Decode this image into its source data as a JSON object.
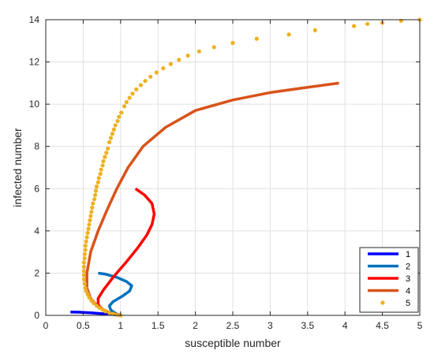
{
  "chart_data": {
    "type": "line",
    "title": "",
    "xlabel": "susceptible number",
    "ylabel": "infected number",
    "xlim": [
      0,
      5
    ],
    "ylim": [
      0,
      14
    ],
    "xticks": [
      0,
      0.5,
      1,
      1.5,
      2,
      2.5,
      3,
      3.5,
      4,
      4.5,
      5
    ],
    "yticks": [
      0,
      2,
      4,
      6,
      8,
      10,
      12,
      14
    ],
    "xtick_labels": [
      "0",
      "0.5",
      "1",
      "1.5",
      "2",
      "2.5",
      "3",
      "3.5",
      "4",
      "4.5",
      "5"
    ],
    "ytick_labels": [
      "0",
      "2",
      "4",
      "6",
      "8",
      "10",
      "12",
      "14"
    ],
    "grid": true,
    "legend_position": "bottom-right",
    "series": [
      {
        "name": "1",
        "color": "#0000ff",
        "style": "line",
        "points": [
          [
            0.33,
            0.16
          ],
          [
            0.45,
            0.15
          ],
          [
            0.6,
            0.12
          ],
          [
            0.72,
            0.09
          ],
          [
            0.82,
            0.06
          ],
          [
            0.9,
            0.04
          ],
          [
            0.95,
            0.02
          ],
          [
            1.0,
            0.0
          ]
        ]
      },
      {
        "name": "2",
        "color": "#0072bd",
        "style": "line",
        "points": [
          [
            0.7,
            2.0
          ],
          [
            0.8,
            1.95
          ],
          [
            0.95,
            1.8
          ],
          [
            1.08,
            1.6
          ],
          [
            1.15,
            1.4
          ],
          [
            1.12,
            1.15
          ],
          [
            1.02,
            0.9
          ],
          [
            0.9,
            0.65
          ],
          [
            0.85,
            0.45
          ],
          [
            0.87,
            0.25
          ],
          [
            0.93,
            0.1
          ],
          [
            1.0,
            0.0
          ]
        ]
      },
      {
        "name": "3",
        "color": "#ff0000",
        "style": "line",
        "points": [
          [
            1.2,
            6.0
          ],
          [
            1.32,
            5.7
          ],
          [
            1.42,
            5.3
          ],
          [
            1.45,
            4.8
          ],
          [
            1.42,
            4.3
          ],
          [
            1.35,
            3.8
          ],
          [
            1.23,
            3.2
          ],
          [
            1.07,
            2.5
          ],
          [
            0.9,
            1.8
          ],
          [
            0.77,
            1.2
          ],
          [
            0.7,
            0.8
          ],
          [
            0.7,
            0.5
          ],
          [
            0.77,
            0.25
          ],
          [
            0.88,
            0.08
          ],
          [
            1.0,
            0.0
          ]
        ]
      },
      {
        "name": "4",
        "color": "#d95319",
        "style": "line",
        "points": [
          [
            3.92,
            11.0
          ],
          [
            3.5,
            10.8
          ],
          [
            3.0,
            10.55
          ],
          [
            2.5,
            10.2
          ],
          [
            2.0,
            9.7
          ],
          [
            1.6,
            8.9
          ],
          [
            1.3,
            8.0
          ],
          [
            1.1,
            7.0
          ],
          [
            0.95,
            6.0
          ],
          [
            0.82,
            5.0
          ],
          [
            0.7,
            4.0
          ],
          [
            0.6,
            3.0
          ],
          [
            0.55,
            2.0
          ],
          [
            0.55,
            1.3
          ],
          [
            0.6,
            0.8
          ],
          [
            0.7,
            0.4
          ],
          [
            0.85,
            0.13
          ],
          [
            1.0,
            0.0
          ]
        ]
      },
      {
        "name": "5",
        "color": "#edb120",
        "style": "dots",
        "points": [
          [
            5.0,
            14.0
          ],
          [
            4.75,
            13.95
          ],
          [
            4.5,
            13.85
          ],
          [
            4.3,
            13.8
          ],
          [
            4.12,
            13.7
          ],
          [
            3.6,
            13.5
          ],
          [
            3.25,
            13.3
          ],
          [
            2.82,
            13.1
          ],
          [
            2.5,
            12.9
          ],
          [
            2.25,
            12.7
          ],
          [
            2.05,
            12.5
          ],
          [
            1.9,
            12.3
          ],
          [
            1.78,
            12.1
          ],
          [
            1.67,
            11.9
          ],
          [
            1.57,
            11.7
          ],
          [
            1.48,
            11.5
          ],
          [
            1.4,
            11.3
          ],
          [
            1.33,
            11.1
          ],
          [
            1.27,
            10.9
          ],
          [
            1.21,
            10.7
          ],
          [
            1.16,
            10.5
          ],
          [
            1.12,
            10.3
          ],
          [
            1.08,
            10.1
          ],
          [
            1.05,
            9.9
          ],
          [
            1.01,
            9.6
          ],
          [
            0.98,
            9.4
          ],
          [
            0.96,
            9.2
          ],
          [
            0.93,
            9.0
          ],
          [
            0.91,
            8.8
          ],
          [
            0.89,
            8.6
          ],
          [
            0.87,
            8.4
          ],
          [
            0.85,
            8.2
          ],
          [
            0.83,
            7.9
          ],
          [
            0.81,
            7.7
          ],
          [
            0.79,
            7.5
          ],
          [
            0.77,
            7.3
          ],
          [
            0.76,
            7.1
          ],
          [
            0.74,
            6.9
          ],
          [
            0.73,
            6.7
          ],
          [
            0.71,
            6.5
          ],
          [
            0.7,
            6.3
          ],
          [
            0.68,
            6.1
          ],
          [
            0.67,
            5.9
          ],
          [
            0.66,
            5.7
          ],
          [
            0.65,
            5.5
          ],
          [
            0.63,
            5.3
          ],
          [
            0.62,
            5.1
          ],
          [
            0.61,
            4.9
          ],
          [
            0.6,
            4.7
          ],
          [
            0.59,
            4.5
          ],
          [
            0.58,
            4.3
          ],
          [
            0.57,
            4.1
          ],
          [
            0.56,
            3.9
          ],
          [
            0.55,
            3.7
          ],
          [
            0.54,
            3.5
          ],
          [
            0.53,
            3.3
          ],
          [
            0.53,
            3.1
          ],
          [
            0.52,
            2.9
          ],
          [
            0.52,
            2.7
          ],
          [
            0.51,
            2.5
          ],
          [
            0.51,
            2.3
          ],
          [
            0.51,
            2.1
          ],
          [
            0.51,
            1.9
          ],
          [
            0.51,
            1.7
          ],
          [
            0.52,
            1.5
          ],
          [
            0.53,
            1.3
          ],
          [
            0.54,
            1.15
          ],
          [
            0.56,
            1.0
          ],
          [
            0.58,
            0.85
          ],
          [
            0.61,
            0.7
          ],
          [
            0.64,
            0.58
          ],
          [
            0.68,
            0.46
          ],
          [
            0.72,
            0.36
          ],
          [
            0.76,
            0.27
          ],
          [
            0.8,
            0.19
          ],
          [
            0.85,
            0.12
          ],
          [
            0.9,
            0.07
          ],
          [
            0.95,
            0.03
          ],
          [
            1.0,
            0.0
          ]
        ]
      }
    ]
  }
}
